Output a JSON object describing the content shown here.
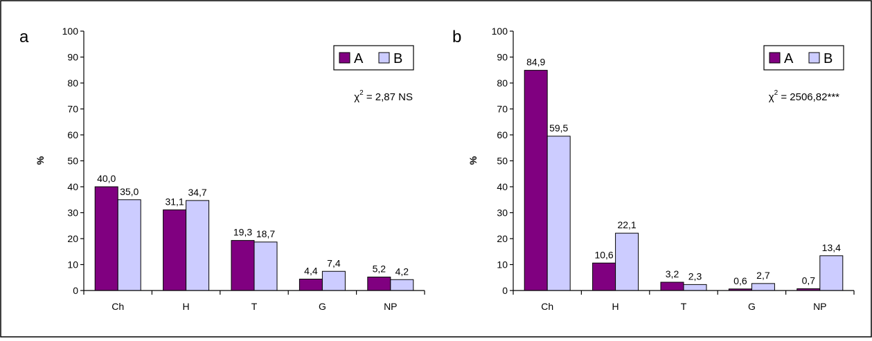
{
  "chart_data": [
    {
      "type": "bar",
      "panel_label": "a",
      "categories": [
        "Ch",
        "H",
        "T",
        "G",
        "NP"
      ],
      "series": [
        {
          "name": "A",
          "values": [
            40.0,
            31.1,
            19.3,
            4.4,
            5.2
          ],
          "labels": [
            "40,0",
            "31,1",
            "19,3",
            "4,4",
            "5,2"
          ]
        },
        {
          "name": "B",
          "values": [
            35.0,
            34.7,
            18.7,
            7.4,
            4.2
          ],
          "labels": [
            "35,0",
            "34,7",
            "18,7",
            "7,4",
            "4,2"
          ]
        }
      ],
      "ylabel": "%",
      "ylim": [
        0,
        100
      ],
      "yticks": [
        "0",
        "10",
        "20",
        "30",
        "40",
        "50",
        "60",
        "70",
        "80",
        "90",
        "100"
      ],
      "annotation": {
        "base": "χ",
        "sup": "2",
        "rest": " = 2,87 NS"
      },
      "legend_position": "top-right",
      "grid": false
    },
    {
      "type": "bar",
      "panel_label": "b",
      "categories": [
        "Ch",
        "H",
        "T",
        "G",
        "NP"
      ],
      "series": [
        {
          "name": "A",
          "values": [
            84.9,
            10.6,
            3.2,
            0.6,
            0.7
          ],
          "labels": [
            "84,9",
            "10,6",
            "3,2",
            "0,6",
            "0,7"
          ]
        },
        {
          "name": "B",
          "values": [
            59.5,
            22.1,
            2.3,
            2.7,
            13.4
          ],
          "labels": [
            "59,5",
            "22,1",
            "2,3",
            "2,7",
            "13,4"
          ]
        }
      ],
      "ylabel": "%",
      "ylim": [
        0,
        100
      ],
      "yticks": [
        "0",
        "10",
        "20",
        "30",
        "40",
        "50",
        "60",
        "70",
        "80",
        "90",
        "100"
      ],
      "annotation": {
        "base": "χ",
        "sup": "2",
        "rest": " = 2506,82***"
      },
      "legend_position": "top-right",
      "grid": false
    }
  ],
  "colors": {
    "A": "#800080",
    "B": "#ccccff",
    "axis": "#000000",
    "border": "#000000",
    "background": "#ffffff"
  }
}
